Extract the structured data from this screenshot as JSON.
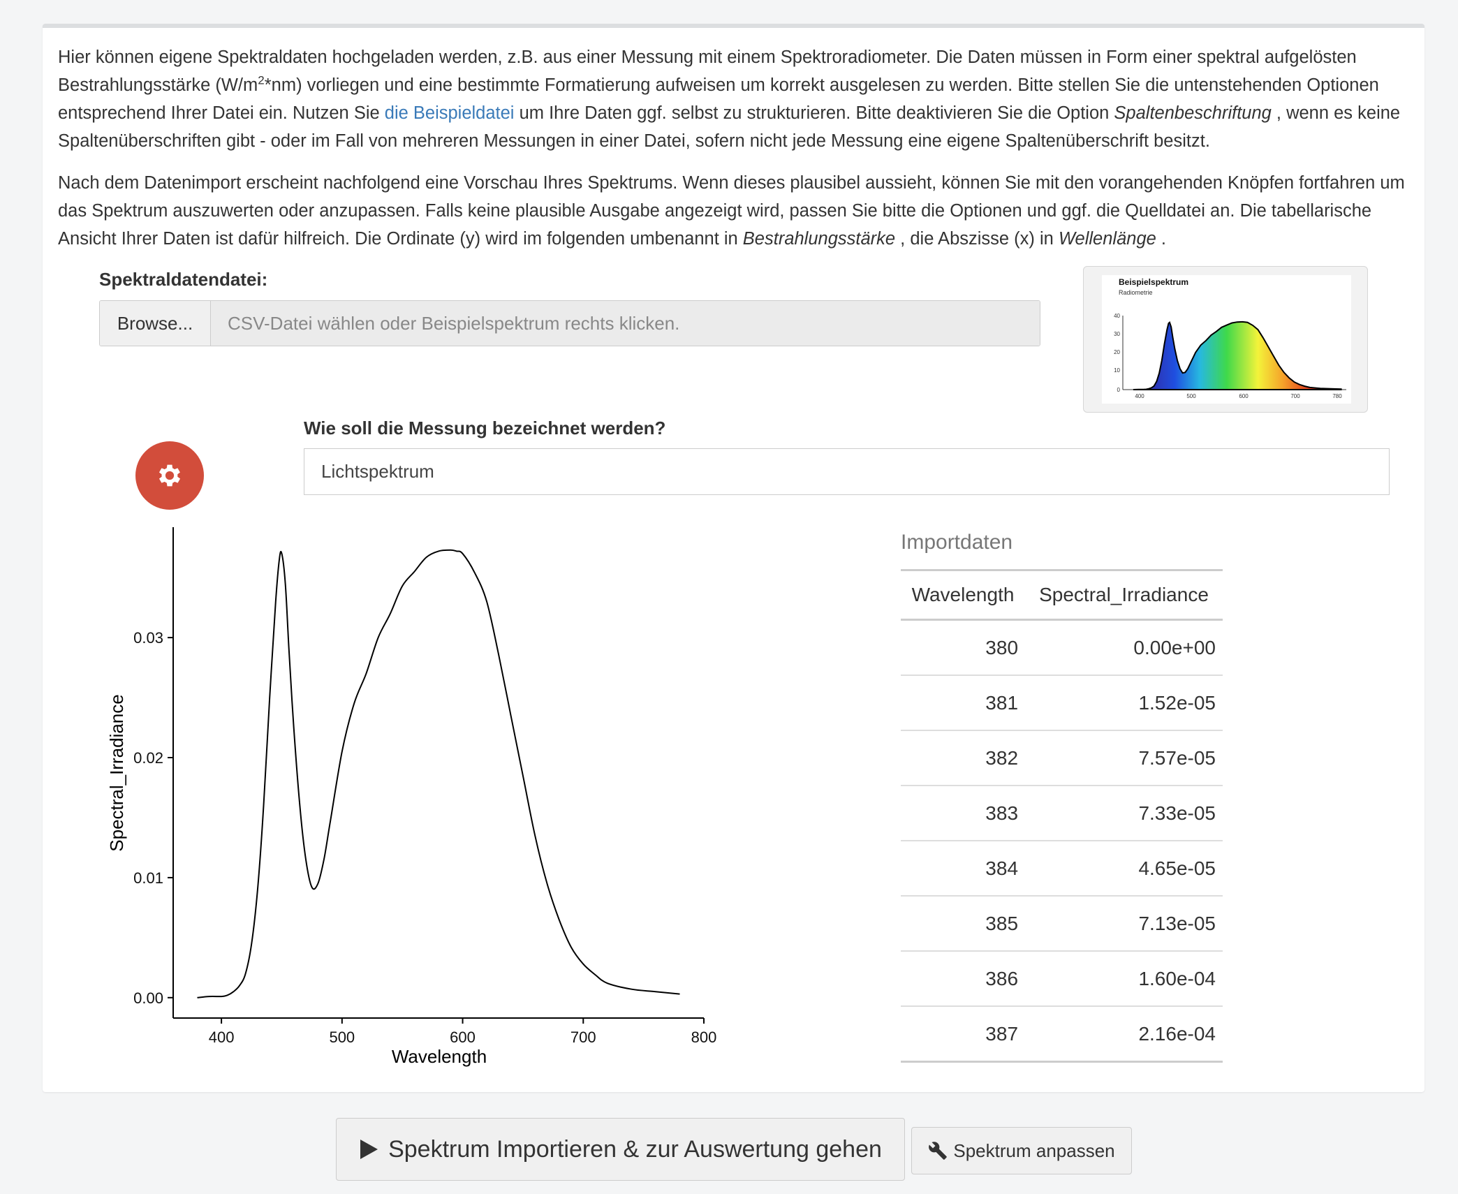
{
  "intro": {
    "p1_a": "Hier können eigene Spektraldaten hochgeladen werden, z.B. aus einer Messung mit einem Spektroradiometer. Die Daten müssen in Form einer spektral aufgelösten Bestrahlungsstärke (W/m",
    "p1_sup": "2",
    "p1_b": "*nm) vorliegen und eine bestimmte Formatierung aufweisen um korrekt ausgelesen zu werden. Bitte stellen Sie die untenstehenden Optionen entsprechend Ihrer Datei ein. Nutzen Sie ",
    "p1_link": "die Beispieldatei",
    "p1_c": " um Ihre Daten ggf. selbst zu strukturieren. Bitte deaktivieren Sie die Option ",
    "p1_em": "Spaltenbeschriftung",
    "p1_d": " , wenn es keine Spaltenüberschriften gibt - oder im Fall von mehreren Messungen in einer Datei, sofern nicht jede Messung eine eigene Spaltenüberschrift besitzt.",
    "p2_a": "Nach dem Datenimport erscheint nachfolgend eine Vorschau Ihres Spektrums. Wenn dieses plausibel aussieht, können Sie mit den vorangehenden Knöpfen fortfahren um das Spektrum auszuwerten oder anzupassen. Falls keine plausible Ausgabe angezeigt wird, passen Sie bitte die Optionen und ggf. die Quelldatei an. Die tabellarische Ansicht Ihrer Daten ist dafür hilfreich. Die Ordinate (y) wird im folgenden umbenannt in ",
    "p2_em1": "Bestrahlungsstärke",
    "p2_b": " , die Abszisse (x) in ",
    "p2_em2": "Wellenlänge",
    "p2_c": " ."
  },
  "upload": {
    "label": "Spektraldatendatei:",
    "browse_label": "Browse...",
    "placeholder": "CSV-Datei wählen oder Beispielspektrum rechts klicken."
  },
  "thumbnail": {
    "title": "Beispielspektrum",
    "subtitle": "Radiometrie",
    "y_ticks": [
      "40",
      "30",
      "20",
      "10",
      "0"
    ],
    "x_ticks": [
      "400",
      "500",
      "600",
      "700",
      "780"
    ]
  },
  "measurement": {
    "label": "Wie soll die Messung bezeichnet werden?",
    "value": "Lichtspektrum"
  },
  "icons": {
    "settings": "gear-icon",
    "play": "play-icon",
    "wrench": "wrench-icon"
  },
  "colors": {
    "settings_button": "#d24d3b",
    "link": "#3a7ab8"
  },
  "chart_data": {
    "type": "line",
    "xlabel": "Wavelength",
    "ylabel": "Spectral_Irradiance",
    "xlim": [
      360,
      800
    ],
    "ylim": [
      -0.0017,
      0.0392
    ],
    "x_ticks": [
      400,
      500,
      600,
      700,
      800
    ],
    "x_tick_labels": [
      "400",
      "500",
      "600",
      "700",
      "800"
    ],
    "y_ticks": [
      0,
      0.01,
      0.02,
      0.03
    ],
    "y_tick_labels": [
      "0.00",
      "0.01",
      "0.02",
      "0.03"
    ],
    "grid": false,
    "series": [
      {
        "x": [
          380,
          390,
          400,
          405,
          410,
          415,
          420,
          425,
          430,
          435,
          440,
          445,
          448,
          450,
          453,
          456,
          460,
          465,
          470,
          475,
          480,
          485,
          490,
          500,
          510,
          520,
          530,
          540,
          550,
          560,
          570,
          580,
          590,
          595,
          600,
          610,
          620,
          630,
          640,
          650,
          660,
          670,
          680,
          690,
          700,
          710,
          720,
          740,
          760,
          780
        ],
        "y": [
          0.0,
          0.0001,
          0.0001,
          0.0002,
          0.0005,
          0.001,
          0.002,
          0.0045,
          0.009,
          0.016,
          0.025,
          0.033,
          0.0365,
          0.037,
          0.0345,
          0.029,
          0.0225,
          0.016,
          0.0115,
          0.0092,
          0.0095,
          0.0115,
          0.0145,
          0.0205,
          0.0245,
          0.027,
          0.03,
          0.032,
          0.0343,
          0.0355,
          0.0367,
          0.0372,
          0.0373,
          0.0372,
          0.037,
          0.0354,
          0.033,
          0.0285,
          0.0235,
          0.0185,
          0.0135,
          0.0095,
          0.0065,
          0.0042,
          0.0028,
          0.0019,
          0.0012,
          0.0007,
          0.0005,
          0.0003
        ]
      }
    ]
  },
  "table": {
    "title": "Importdaten",
    "headers": [
      "Wavelength",
      "Spectral_Irradiance"
    ],
    "rows": [
      [
        "380",
        "0.00e+00"
      ],
      [
        "381",
        "1.52e-05"
      ],
      [
        "382",
        "7.57e-05"
      ],
      [
        "383",
        "7.33e-05"
      ],
      [
        "384",
        "4.65e-05"
      ],
      [
        "385",
        "7.13e-05"
      ],
      [
        "386",
        "1.60e-04"
      ],
      [
        "387",
        "2.16e-04"
      ]
    ]
  },
  "buttons": {
    "import_label": "Spektrum Importieren & zur Auswertung gehen",
    "adjust_label": "Spektrum anpassen"
  }
}
